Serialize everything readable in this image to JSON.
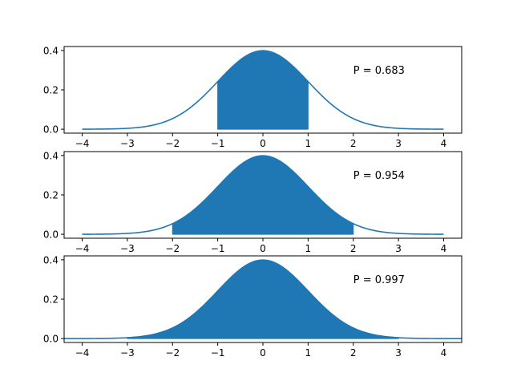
{
  "colors": {
    "series": "#1f77b4",
    "axes": "#000000",
    "background": "#ffffff"
  },
  "chart_data": [
    {
      "type": "area",
      "x_range": [
        -4,
        4
      ],
      "xlim": [
        -4.4,
        4.4
      ],
      "ylim": [
        -0.02,
        0.42
      ],
      "xticks": [
        -4,
        -3,
        -2,
        -1,
        0,
        1,
        2,
        3,
        4
      ],
      "xtick_labels": [
        "−4",
        "−3",
        "−2",
        "−1",
        "0",
        "1",
        "2",
        "3",
        "4"
      ],
      "yticks": [
        0.0,
        0.2,
        0.4
      ],
      "ytick_labels": [
        "0.0",
        "0.2",
        "0.4"
      ],
      "curve": "standard normal pdf",
      "shaded_interval": [
        -1,
        1
      ],
      "annotation": "P = 0.683",
      "annotation_position": {
        "x": 2,
        "y": 0.3
      }
    },
    {
      "type": "area",
      "x_range": [
        -4,
        4
      ],
      "xlim": [
        -4.4,
        4.4
      ],
      "ylim": [
        -0.02,
        0.42
      ],
      "xticks": [
        -4,
        -3,
        -2,
        -1,
        0,
        1,
        2,
        3,
        4
      ],
      "xtick_labels": [
        "−4",
        "−3",
        "−2",
        "−1",
        "0",
        "1",
        "2",
        "3",
        "4"
      ],
      "yticks": [
        0.0,
        0.2,
        0.4
      ],
      "ytick_labels": [
        "0.0",
        "0.2",
        "0.4"
      ],
      "curve": "standard normal pdf",
      "shaded_interval": [
        -2,
        2
      ],
      "annotation": "P = 0.954",
      "annotation_position": {
        "x": 2,
        "y": 0.3
      }
    },
    {
      "type": "area",
      "x_range": [
        -4.4,
        4.4
      ],
      "xlim": [
        -4.4,
        4.4
      ],
      "ylim": [
        -0.02,
        0.42
      ],
      "xticks": [
        -4,
        -3,
        -2,
        -1,
        0,
        1,
        2,
        3,
        4
      ],
      "xtick_labels": [
        "−4",
        "−3",
        "−2",
        "−1",
        "0",
        "1",
        "2",
        "3",
        "4"
      ],
      "yticks": [
        0.0,
        0.2,
        0.4
      ],
      "ytick_labels": [
        "0.0",
        "0.2",
        "0.4"
      ],
      "curve": "standard normal pdf",
      "shaded_interval": [
        -3,
        3
      ],
      "annotation": "P = 0.997",
      "annotation_position": {
        "x": 2,
        "y": 0.3
      }
    }
  ]
}
